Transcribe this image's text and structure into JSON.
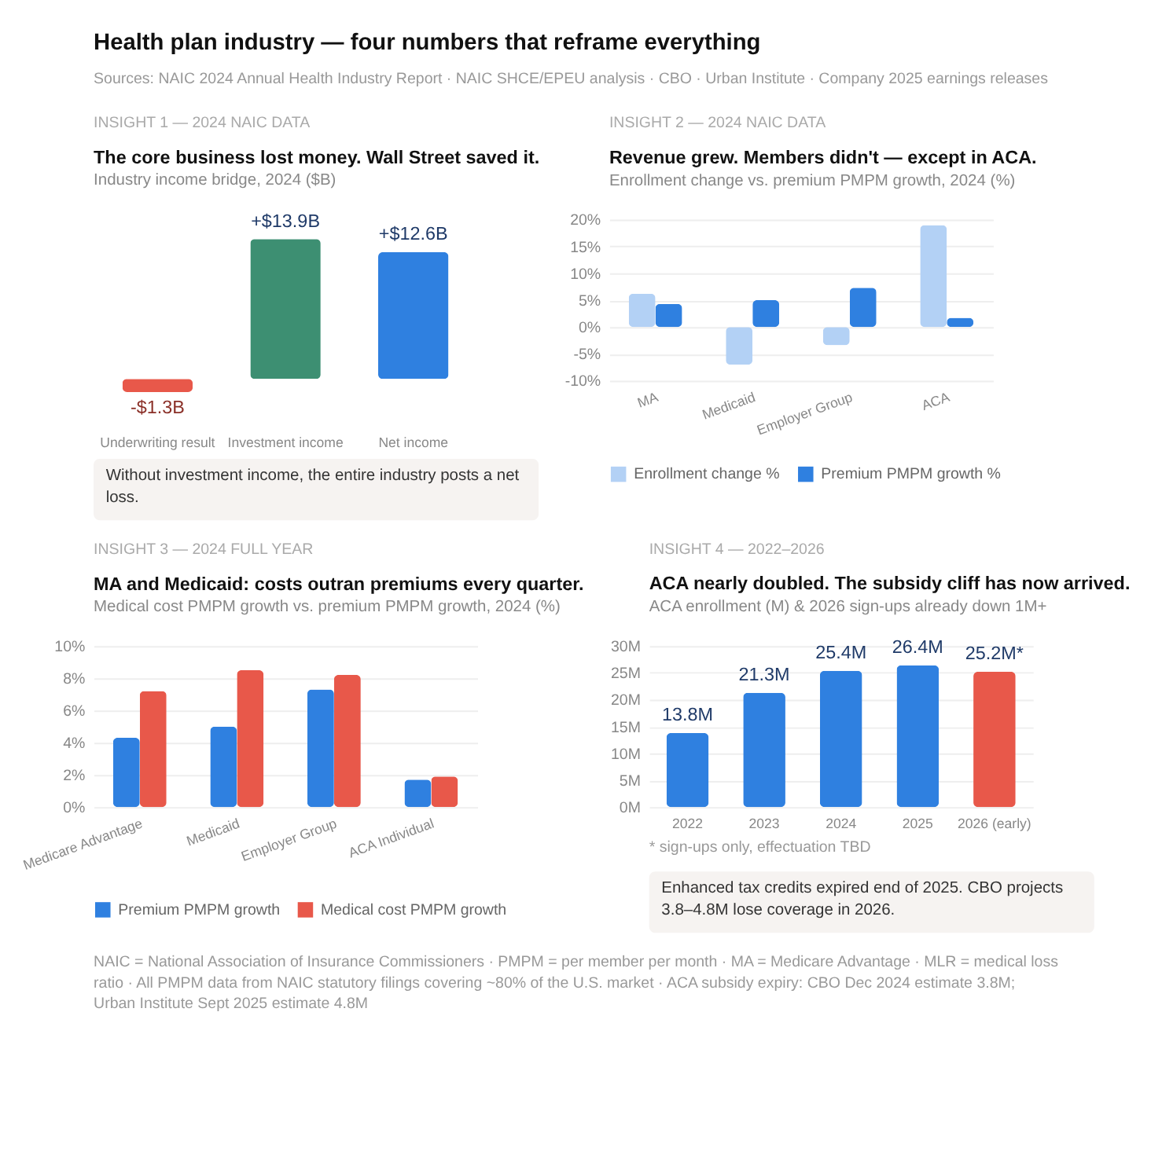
{
  "chart_data": [
    {
      "type": "other",
      "title": "Health plan industry — four numbers that reframe everything",
      "annotations": [
        "Sources: NAIC 2024 Annual Health Industry Report · NAIC SHCE/EPEU analysis · CBO · Urban Institute · Company 2025 earnings releases"
      ]
    },
    {
      "type": "bar",
      "title": "The core business lost money. Wall Street saved it.",
      "subtitle": "Industry income bridge, 2024 ($B)",
      "categories": [
        "Underwriting result",
        "Investment income",
        "Net income"
      ],
      "values": [
        -1.3,
        13.9,
        12.6
      ],
      "colors": [
        "#e8584a",
        "#3d8f72",
        "#2f80e0"
      ],
      "value_labels": [
        "-$1.3B",
        "+$13.9B",
        "+$12.6B"
      ],
      "annotations": [
        "INSIGHT 1 — 2024 NAIC DATA",
        "Without investment income, the entire industry posts a net loss."
      ]
    },
    {
      "type": "bar",
      "title": "Revenue grew. Members didn't — except in ACA.",
      "subtitle": "Enrollment change vs. premium PMPM growth, 2024 (%)",
      "categories": [
        "MA",
        "Medicaid",
        "Employer Group",
        "ACA"
      ],
      "series": [
        {
          "name": "Enrollment change %",
          "color": "#b3d1f5",
          "values": [
            6.2,
            -7.0,
            -3.4,
            19.0
          ]
        },
        {
          "name": "Premium PMPM growth %",
          "color": "#2f80e0",
          "values": [
            4.3,
            5.0,
            7.3,
            1.7
          ]
        }
      ],
      "ylim": [
        -10,
        20
      ],
      "yticks": [
        {
          "value": -10,
          "label": "-10%"
        },
        {
          "value": -5,
          "label": "-5%"
        },
        {
          "value": 0,
          "label": "0%"
        },
        {
          "value": 5,
          "label": "5%"
        },
        {
          "value": 10,
          "label": "10%"
        },
        {
          "value": 15,
          "label": "15%"
        },
        {
          "value": 20,
          "label": "20%"
        }
      ],
      "grid": "y",
      "legend": "bottom",
      "annotations": [
        "INSIGHT 2 — 2024 NAIC DATA"
      ]
    },
    {
      "type": "bar",
      "title": "MA and Medicaid: costs outran premiums every quarter.",
      "subtitle": "Medical cost PMPM growth vs. premium PMPM growth, 2024 (%)",
      "categories": [
        "Medicare Advantage",
        "Medicaid",
        "Employer Group",
        "ACA Individual"
      ],
      "series": [
        {
          "name": "Premium PMPM growth",
          "color": "#2f80e0",
          "values": [
            4.3,
            5.0,
            7.3,
            1.7
          ]
        },
        {
          "name": "Medical cost PMPM growth",
          "color": "#e8584a",
          "values": [
            7.2,
            8.5,
            8.2,
            1.9
          ]
        }
      ],
      "ylim": [
        0,
        10
      ],
      "yticks": [
        {
          "value": 0,
          "label": "0%"
        },
        {
          "value": 2,
          "label": "2%"
        },
        {
          "value": 4,
          "label": "4%"
        },
        {
          "value": 6,
          "label": "6%"
        },
        {
          "value": 8,
          "label": "8%"
        },
        {
          "value": 10,
          "label": "10%"
        }
      ],
      "grid": "y",
      "legend": "bottom",
      "annotations": [
        "INSIGHT 3 — 2024 FULL YEAR"
      ]
    },
    {
      "type": "bar",
      "title": "ACA nearly doubled. The subsidy cliff has now arrived.",
      "subtitle": "ACA enrollment (M) & 2026 sign-ups already down 1M+",
      "categories": [
        "2022",
        "2023",
        "2024",
        "2025",
        "2026 (early)"
      ],
      "values": [
        13.8,
        21.3,
        25.4,
        26.4,
        25.2
      ],
      "colors": [
        "#2f80e0",
        "#2f80e0",
        "#2f80e0",
        "#2f80e0",
        "#e8584a"
      ],
      "value_labels": [
        "13.8M",
        "21.3M",
        "25.4M",
        "26.4M",
        "25.2M*"
      ],
      "ylim": [
        0,
        30
      ],
      "yticks": [
        {
          "value": 0,
          "label": "0M"
        },
        {
          "value": 5,
          "label": "5M"
        },
        {
          "value": 10,
          "label": "10M"
        },
        {
          "value": 15,
          "label": "15M"
        },
        {
          "value": 20,
          "label": "20M"
        },
        {
          "value": 25,
          "label": "25M"
        },
        {
          "value": 30,
          "label": "30M"
        }
      ],
      "grid": "y",
      "annotations": [
        "INSIGHT 4 — 2022–2026",
        "* sign-ups only, effectuation TBD",
        "Enhanced tax credits expired end of 2025. CBO projects 3.8–4.8M lose coverage in 2026."
      ]
    },
    {
      "type": "other",
      "annotations": [
        "NAIC = National Association of Insurance Commissioners · PMPM = per member per month · MA = Medicare Advantage · MLR = medical loss ratio · All PMPM data from NAIC statutory filings covering ~80% of the U.S. market · ACA subsidy expiry: CBO Dec 2024 estimate 3.8M; Urban Institute Sept 2025 estimate 4.8M"
      ]
    }
  ]
}
